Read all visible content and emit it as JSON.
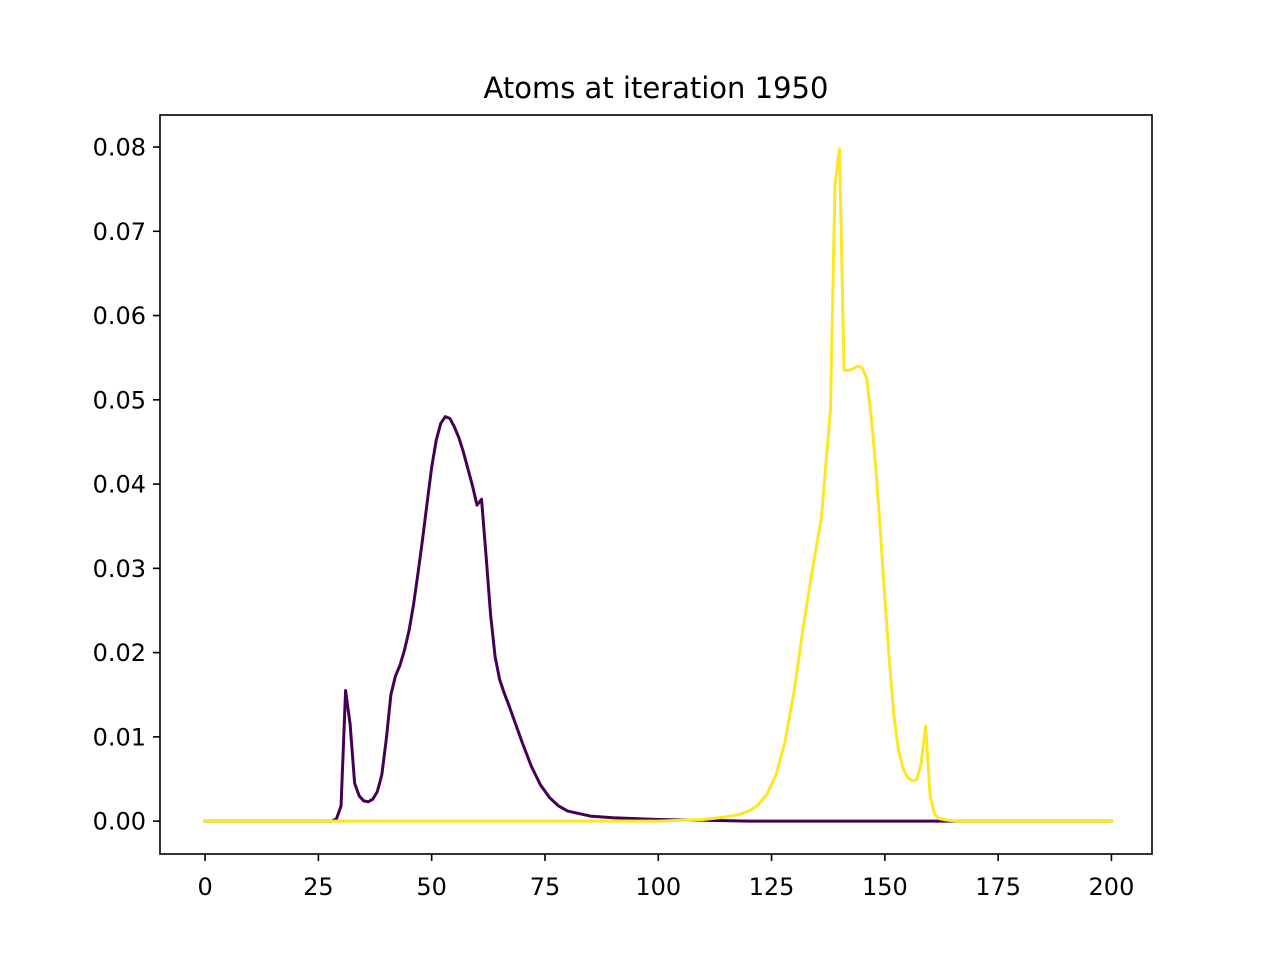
{
  "chart_data": {
    "type": "line",
    "title": "Atoms at iteration 1950",
    "xlabel": "",
    "ylabel": "",
    "xlim": [
      -9.95,
      208.95
    ],
    "ylim": [
      -0.0039,
      0.0838
    ],
    "xticks": [
      0,
      25,
      50,
      75,
      100,
      125,
      150,
      175,
      200
    ],
    "xtick_labels": [
      "0",
      "25",
      "50",
      "75",
      "100",
      "125",
      "150",
      "175",
      "200"
    ],
    "yticks": [
      0.0,
      0.01,
      0.02,
      0.03,
      0.04,
      0.05,
      0.06,
      0.07,
      0.08
    ],
    "ytick_labels": [
      "0.00",
      "0.01",
      "0.02",
      "0.03",
      "0.04",
      "0.05",
      "0.06",
      "0.07",
      "0.08"
    ],
    "grid": false,
    "legend": "none",
    "series": [
      {
        "color": "#440154",
        "points": [
          [
            0,
            0.0
          ],
          [
            25,
            0.0
          ],
          [
            28,
            0.0
          ],
          [
            29,
            0.0003
          ],
          [
            30,
            0.0018
          ],
          [
            31,
            0.0155
          ],
          [
            32,
            0.0115
          ],
          [
            33,
            0.0045
          ],
          [
            34,
            0.003
          ],
          [
            35,
            0.0024
          ],
          [
            36,
            0.0023
          ],
          [
            37,
            0.0026
          ],
          [
            38,
            0.0035
          ],
          [
            39,
            0.0055
          ],
          [
            40,
            0.0098
          ],
          [
            41,
            0.015
          ],
          [
            42,
            0.0172
          ],
          [
            43,
            0.0185
          ],
          [
            44,
            0.0203
          ],
          [
            45,
            0.0226
          ],
          [
            46,
            0.0257
          ],
          [
            47,
            0.0295
          ],
          [
            48,
            0.0335
          ],
          [
            49,
            0.0378
          ],
          [
            50,
            0.042
          ],
          [
            51,
            0.0452
          ],
          [
            52,
            0.0472
          ],
          [
            53,
            0.048
          ],
          [
            54,
            0.0478
          ],
          [
            55,
            0.0468
          ],
          [
            56,
            0.0455
          ],
          [
            57,
            0.0438
          ],
          [
            58,
            0.0418
          ],
          [
            59,
            0.0398
          ],
          [
            60,
            0.0375
          ],
          [
            61,
            0.0382
          ],
          [
            62,
            0.0315
          ],
          [
            63,
            0.0245
          ],
          [
            64,
            0.0195
          ],
          [
            65,
            0.0168
          ],
          [
            66,
            0.0152
          ],
          [
            67,
            0.0138
          ],
          [
            68,
            0.0123
          ],
          [
            69,
            0.0108
          ],
          [
            70,
            0.0093
          ],
          [
            72,
            0.0065
          ],
          [
            74,
            0.0043
          ],
          [
            76,
            0.0028
          ],
          [
            78,
            0.0018
          ],
          [
            80,
            0.0012
          ],
          [
            85,
            0.0006
          ],
          [
            90,
            0.0004
          ],
          [
            100,
            0.0002
          ],
          [
            110,
            0.0001
          ],
          [
            120,
            0.0
          ],
          [
            200,
            0.0
          ]
        ]
      },
      {
        "color": "#fde725",
        "points": [
          [
            0,
            0.0
          ],
          [
            100,
            0.0
          ],
          [
            105,
            0.0001
          ],
          [
            110,
            0.0002
          ],
          [
            115,
            0.0005
          ],
          [
            118,
            0.0008
          ],
          [
            120,
            0.0012
          ],
          [
            122,
            0.0019
          ],
          [
            124,
            0.0032
          ],
          [
            126,
            0.0055
          ],
          [
            128,
            0.0095
          ],
          [
            130,
            0.0155
          ],
          [
            132,
            0.023
          ],
          [
            134,
            0.0298
          ],
          [
            136,
            0.036
          ],
          [
            138,
            0.0488
          ],
          [
            139,
            0.0755
          ],
          [
            140,
            0.0798
          ],
          [
            141,
            0.0535
          ],
          [
            142,
            0.0535
          ],
          [
            143,
            0.0537
          ],
          [
            144,
            0.054
          ],
          [
            145,
            0.0538
          ],
          [
            146,
            0.0525
          ],
          [
            147,
            0.048
          ],
          [
            148,
            0.042
          ],
          [
            149,
            0.0345
          ],
          [
            150,
            0.0265
          ],
          [
            151,
            0.019
          ],
          [
            152,
            0.0125
          ],
          [
            153,
            0.0085
          ],
          [
            154,
            0.0063
          ],
          [
            155,
            0.0052
          ],
          [
            156,
            0.0048
          ],
          [
            157,
            0.0049
          ],
          [
            158,
            0.0068
          ],
          [
            159,
            0.0113
          ],
          [
            160,
            0.003
          ],
          [
            161,
            0.0008
          ],
          [
            162,
            0.0003
          ],
          [
            164,
            0.0001
          ],
          [
            166,
            0.0
          ],
          [
            200,
            0.0
          ]
        ]
      }
    ]
  }
}
